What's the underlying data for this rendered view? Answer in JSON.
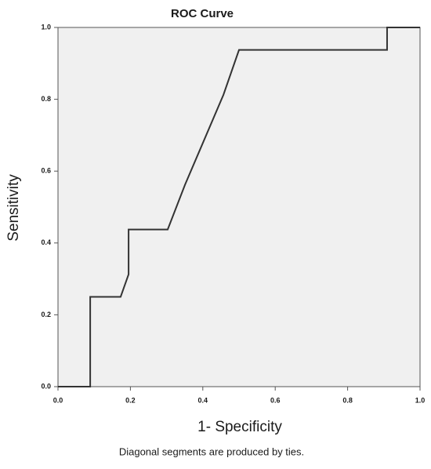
{
  "chart_data": {
    "type": "line",
    "title": "ROC Curve",
    "x_label": "1- Specificity",
    "y_label": "Sensitivity",
    "annotation": "Diagonal segments are produced by ties.",
    "x": [
      0,
      0.089,
      0.089,
      0.173,
      0.195,
      0.195,
      0.303,
      0.351,
      0.457,
      0.5,
      0.909,
      0.909,
      1
    ],
    "values": [
      0,
      0,
      0.25,
      0.25,
      0.3125,
      0.4375,
      0.4375,
      0.5625,
      0.8125,
      0.9375,
      0.9375,
      1,
      1
    ],
    "color": "#333333",
    "background": "#f0f0f0",
    "xlim": [
      0,
      1
    ],
    "ylim": [
      0,
      1
    ],
    "xticks": [
      {
        "value": 0,
        "label": "0.0"
      },
      {
        "value": 0.2,
        "label": "0.2"
      },
      {
        "value": 0.4,
        "label": "0.4"
      },
      {
        "value": 0.6,
        "label": "0.6"
      },
      {
        "value": 0.8,
        "label": "0.8"
      },
      {
        "value": 1,
        "label": "1.0"
      }
    ],
    "yticks": [
      {
        "value": 0,
        "label": "0.0"
      },
      {
        "value": 0.2,
        "label": "0.2"
      },
      {
        "value": 0.4,
        "label": "0.4"
      },
      {
        "value": 0.6,
        "label": "0.6"
      },
      {
        "value": 0.8,
        "label": "0.8"
      },
      {
        "value": 1,
        "label": "1.0"
      }
    ]
  }
}
